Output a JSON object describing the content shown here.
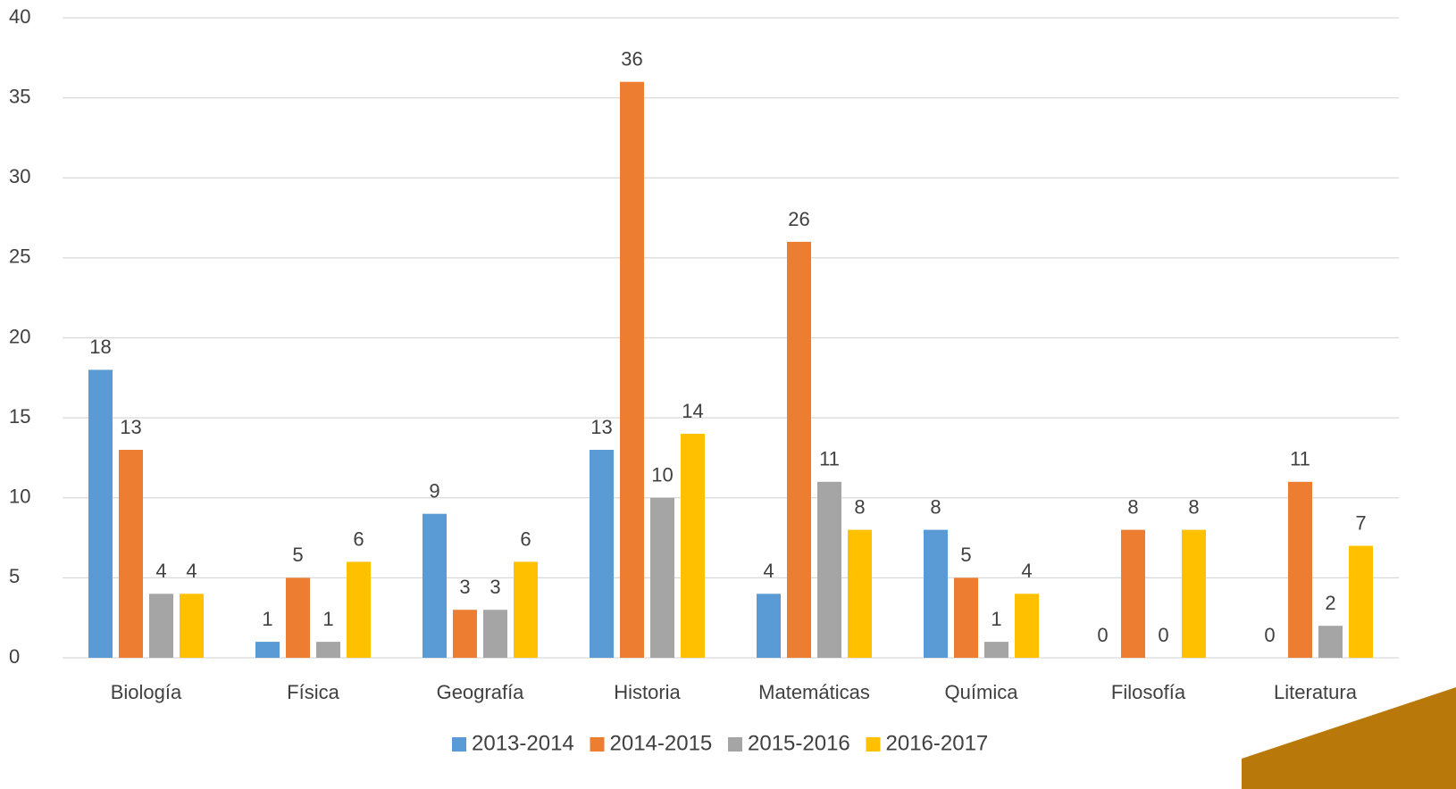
{
  "chart_data": {
    "type": "bar",
    "categories": [
      "Biología",
      "Física",
      "Geografía",
      "Historia",
      "Matemáticas",
      "Química",
      "Filosofía",
      "Literatura"
    ],
    "series": [
      {
        "name": "2013-2014",
        "color": "#5b9bd5",
        "values": [
          18,
          1,
          9,
          13,
          4,
          8,
          0,
          0
        ]
      },
      {
        "name": "2014-2015",
        "color": "#ed7d31",
        "values": [
          13,
          5,
          3,
          36,
          26,
          5,
          8,
          11
        ]
      },
      {
        "name": "2015-2016",
        "color": "#a5a5a5",
        "values": [
          4,
          1,
          3,
          10,
          11,
          1,
          0,
          2
        ]
      },
      {
        "name": "2016-2017",
        "color": "#ffc000",
        "values": [
          4,
          6,
          6,
          14,
          8,
          4,
          8,
          7
        ]
      }
    ],
    "ylim": [
      0,
      40
    ],
    "yticks": [
      0,
      5,
      10,
      15,
      20,
      25,
      30,
      35,
      40
    ],
    "grid": true,
    "legend": "bottom",
    "data_labels": true
  }
}
